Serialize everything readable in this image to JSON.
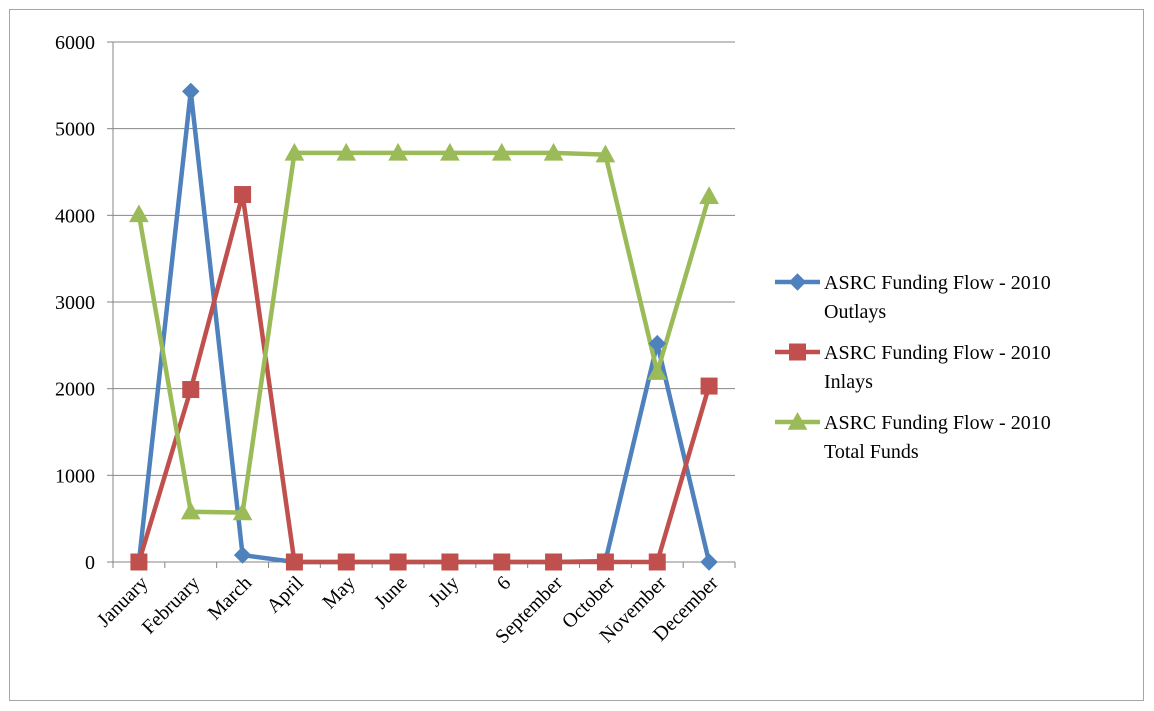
{
  "chart_data": {
    "type": "line",
    "categories": [
      "January",
      "February",
      "March",
      "April",
      "May",
      "June",
      "July",
      "6",
      "September",
      "October",
      "November",
      "December"
    ],
    "ylim": [
      0,
      6000
    ],
    "yticks": [
      0,
      1000,
      2000,
      3000,
      4000,
      5000,
      6000
    ],
    "grid": true,
    "legend_position": "right",
    "series": [
      {
        "name_lines": [
          "ASRC Funding Flow - 2010",
          "Outlays"
        ],
        "color": "#4f81bd",
        "marker": "diamond",
        "values": [
          0,
          5430,
          80,
          0,
          0,
          0,
          0,
          0,
          0,
          10,
          2520,
          0
        ]
      },
      {
        "name_lines": [
          "ASRC Funding Flow - 2010",
          "Inlays"
        ],
        "color": "#c0504d",
        "marker": "square",
        "values": [
          0,
          1990,
          4240,
          0,
          0,
          0,
          0,
          0,
          0,
          0,
          0,
          2030
        ]
      },
      {
        "name_lines": [
          "ASRC Funding Flow - 2010",
          "Total Funds"
        ],
        "color": "#9bbb59",
        "marker": "triangle",
        "values": [
          4010,
          580,
          570,
          4720,
          4720,
          4720,
          4720,
          4720,
          4720,
          4700,
          2190,
          4220
        ]
      }
    ]
  }
}
